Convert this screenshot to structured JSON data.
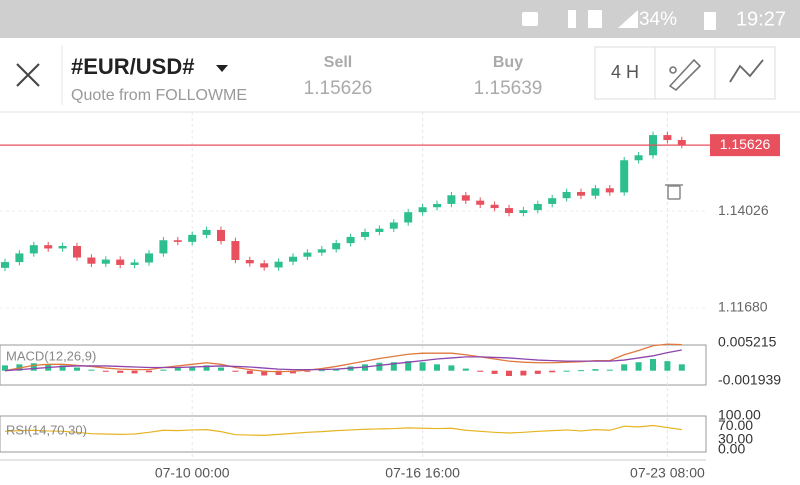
{
  "status_bar": {
    "battery": "34%",
    "time": "19:27"
  },
  "header": {
    "symbol": "#EUR/USD#",
    "subtitle": "Quote from FOLLOWME",
    "sell_label": "Sell",
    "sell": "1.15626",
    "buy_label": "Buy",
    "buy": "1.15639",
    "timeframe": "4 H"
  },
  "chart_data": [
    {
      "type": "candlestick",
      "categories": [
        null,
        null,
        null,
        null,
        null,
        null,
        null,
        null,
        null,
        null,
        null,
        null,
        null,
        "07-10 00:00",
        null,
        null,
        null,
        null,
        null,
        null,
        null,
        null,
        null,
        null,
        null,
        null,
        null,
        null,
        null,
        "07-16 16:00",
        null,
        null,
        null,
        null,
        null,
        null,
        null,
        null,
        null,
        null,
        null,
        null,
        null,
        null,
        null,
        null,
        "07-23 08:00",
        null
      ],
      "open": [
        1.1265,
        1.1279,
        1.13,
        1.132,
        1.1312,
        1.1318,
        1.129,
        1.1275,
        1.1285,
        1.1272,
        1.1278,
        1.13,
        1.1332,
        1.1328,
        1.1345,
        1.1357,
        1.133,
        1.1284,
        1.1276,
        1.1266,
        1.128,
        1.1292,
        1.1302,
        1.131,
        1.1325,
        1.134,
        1.1352,
        1.136,
        1.1375,
        1.14,
        1.1412,
        1.142,
        1.1441,
        1.1428,
        1.1418,
        1.141,
        1.1398,
        1.1405,
        1.142,
        1.1434,
        1.1449,
        1.144,
        1.1458,
        1.1448,
        1.1526,
        1.1538,
        1.1587,
        1.1575
      ],
      "high": [
        1.1287,
        1.1308,
        1.1328,
        1.1328,
        1.1326,
        1.1326,
        1.1298,
        1.1293,
        1.1293,
        1.1286,
        1.1308,
        1.134,
        1.134,
        1.1353,
        1.1365,
        1.1365,
        1.1338,
        1.1292,
        1.1284,
        1.1288,
        1.13,
        1.131,
        1.1318,
        1.1333,
        1.1348,
        1.136,
        1.1368,
        1.1383,
        1.1408,
        1.142,
        1.1428,
        1.1449,
        1.1449,
        1.1436,
        1.1426,
        1.1418,
        1.1413,
        1.1428,
        1.1442,
        1.1457,
        1.1457,
        1.1466,
        1.1466,
        1.1534,
        1.1546,
        1.1595,
        1.1595,
        1.1583
      ],
      "low": [
        1.1257,
        1.1271,
        1.1292,
        1.1304,
        1.1304,
        1.1282,
        1.1267,
        1.1267,
        1.1264,
        1.1264,
        1.127,
        1.1292,
        1.132,
        1.132,
        1.1337,
        1.1322,
        1.1276,
        1.1268,
        1.1258,
        1.1258,
        1.1272,
        1.1284,
        1.1294,
        1.1302,
        1.1317,
        1.1332,
        1.1344,
        1.1352,
        1.1367,
        1.1392,
        1.1404,
        1.1412,
        1.142,
        1.141,
        1.1402,
        1.139,
        1.139,
        1.1397,
        1.1412,
        1.1426,
        1.1432,
        1.1432,
        1.144,
        1.144,
        1.1518,
        1.153,
        1.1567,
        1.1555
      ],
      "close": [
        1.1279,
        1.13,
        1.132,
        1.1312,
        1.1318,
        1.129,
        1.1275,
        1.1285,
        1.1272,
        1.1278,
        1.13,
        1.1332,
        1.1328,
        1.1345,
        1.1357,
        1.133,
        1.1284,
        1.1276,
        1.1266,
        1.128,
        1.1292,
        1.1302,
        1.131,
        1.1325,
        1.134,
        1.1352,
        1.136,
        1.1375,
        1.14,
        1.1412,
        1.142,
        1.1441,
        1.1428,
        1.1418,
        1.141,
        1.1398,
        1.1405,
        1.142,
        1.1434,
        1.1449,
        1.144,
        1.1458,
        1.1448,
        1.1526,
        1.1538,
        1.1587,
        1.1575,
        1.1563
      ],
      "up_color": "#2dbf8f",
      "down_color": "#e8505e",
      "ylim": [
        1.109,
        1.1643
      ],
      "yticks": [
        {
          "value": 1.1168,
          "label": "1.11680"
        },
        {
          "value": 1.14026,
          "label": "1.14026"
        }
      ],
      "current_price": {
        "value": 1.15626,
        "label": "1.15626",
        "color": "#e8505e"
      }
    },
    {
      "type": "macd",
      "title": "MACD(12,26,9)",
      "histogram": [
        0.001,
        0.0012,
        0.0014,
        0.0012,
        0.001,
        0.0006,
        0.0002,
        -0.0002,
        -0.0004,
        -0.0005,
        -0.0003,
        0.0002,
        0.0005,
        0.0008,
        0.001,
        0.0006,
        -0.0002,
        -0.0006,
        -0.0009,
        -0.0008,
        -0.0005,
        -0.0002,
        0.0001,
        0.0004,
        0.0008,
        0.0012,
        0.0015,
        0.0016,
        0.0018,
        0.0016,
        0.0012,
        0.001,
        0.0004,
        -0.0002,
        -0.0006,
        -0.001,
        -0.0009,
        -0.0006,
        -0.0003,
        0.0,
        0.0001,
        0.0003,
        0.0002,
        0.0012,
        0.0016,
        0.0022,
        0.0018,
        0.0012
      ],
      "series": [
        {
          "color": "#e0783c",
          "values": [
            0.0,
            0.0005,
            0.001,
            0.0012,
            0.0012,
            0.001,
            0.0008,
            0.0005,
            0.0003,
            0.0002,
            0.0002,
            0.0006,
            0.0009,
            0.0012,
            0.0015,
            0.0012,
            0.0006,
            0.0002,
            -0.0001,
            -0.0002,
            -0.0001,
            0.0001,
            0.0004,
            0.0008,
            0.0013,
            0.0018,
            0.0023,
            0.0027,
            0.0031,
            0.0033,
            0.0033,
            0.0033,
            0.003,
            0.0026,
            0.0022,
            0.0018,
            0.0016,
            0.0015,
            0.0015,
            0.0016,
            0.0017,
            0.0019,
            0.0019,
            0.003,
            0.0038,
            0.0047,
            0.005,
            0.0049
          ]
        },
        {
          "color": "#8e44ad",
          "values": [
            0.0,
            0.0002,
            0.0004,
            0.0006,
            0.0008,
            0.0009,
            0.0009,
            0.0009,
            0.0008,
            0.0007,
            0.0006,
            0.0006,
            0.0006,
            0.0007,
            0.0008,
            0.0009,
            0.0008,
            0.0007,
            0.0005,
            0.0003,
            0.0002,
            0.0002,
            0.0002,
            0.0003,
            0.0005,
            0.0007,
            0.001,
            0.0013,
            0.0016,
            0.0019,
            0.0022,
            0.0024,
            0.0026,
            0.0026,
            0.0025,
            0.0024,
            0.0022,
            0.002,
            0.0019,
            0.0018,
            0.0018,
            0.0018,
            0.0018,
            0.002,
            0.0024,
            0.0028,
            0.0034,
            0.0039
          ]
        }
      ],
      "up_color": "#2dbf8f",
      "down_color": "#e8505e",
      "ylim": [
        -0.001939,
        0.005215
      ],
      "yticks": [
        0.005215,
        -0.001939
      ]
    },
    {
      "type": "rsi",
      "title": "RSI(14,70,30)",
      "color": "#e6b422",
      "values": [
        55,
        57,
        58,
        56,
        55,
        52,
        48,
        47,
        46,
        47,
        52,
        58,
        57,
        59,
        60,
        54,
        45,
        44,
        43,
        46,
        49,
        52,
        54,
        57,
        59,
        61,
        62,
        63,
        65,
        64,
        63,
        64,
        58,
        55,
        52,
        50,
        52,
        55,
        57,
        59,
        56,
        60,
        58,
        70,
        68,
        72,
        66,
        60
      ],
      "ylim": [
        0,
        100
      ],
      "yticks": [
        {
          "value": 100,
          "label": "100.00"
        },
        {
          "value": 70,
          "label": "70.00"
        },
        {
          "value": 30,
          "label": "30.00"
        },
        {
          "value": 0,
          "label": "0.00"
        }
      ]
    }
  ]
}
